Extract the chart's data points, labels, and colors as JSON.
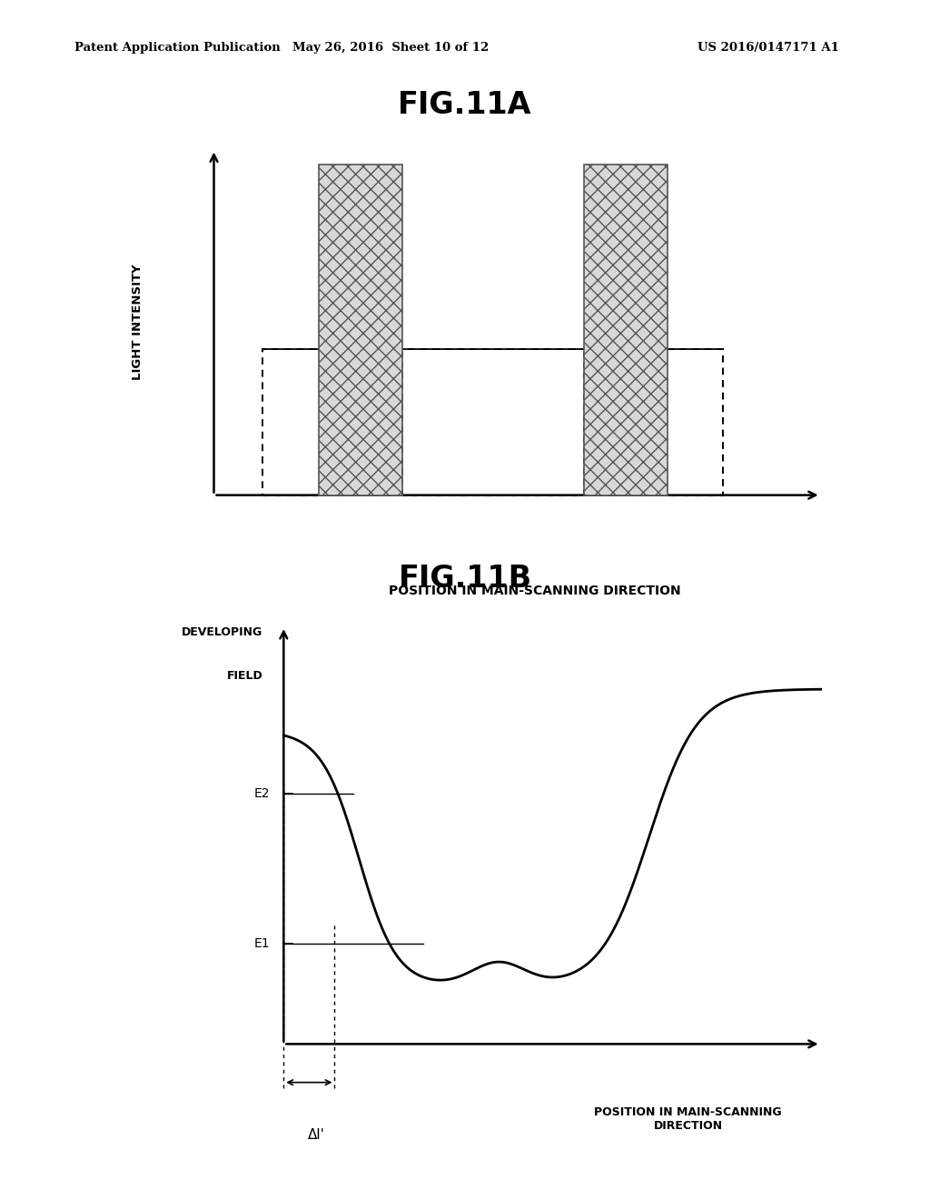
{
  "bg_color": "#ffffff",
  "header_left": "Patent Application Publication",
  "header_mid": "May 26, 2016  Sheet 10 of 12",
  "header_right": "US 2016/0147171 A1",
  "fig11a_title": "FIG.11A",
  "fig11b_title": "FIG.11B",
  "fig11a_ylabel": "LIGHT INTENSITY",
  "fig11a_xlabel": "POSITION IN MAIN-SCANNING DIRECTION",
  "fig11b_ylabel_line1": "DEVELOPING",
  "fig11b_ylabel_line2": "FIELD",
  "fig11b_xlabel": "POSITION IN MAIN-SCANNING\nDIRECTION",
  "fig11b_e2_label": "E2",
  "fig11b_e1_label": "E1",
  "fig11b_delta_label": "Δl'",
  "hatch_color": "#888888",
  "hatch_fill": "#d8d8d8"
}
